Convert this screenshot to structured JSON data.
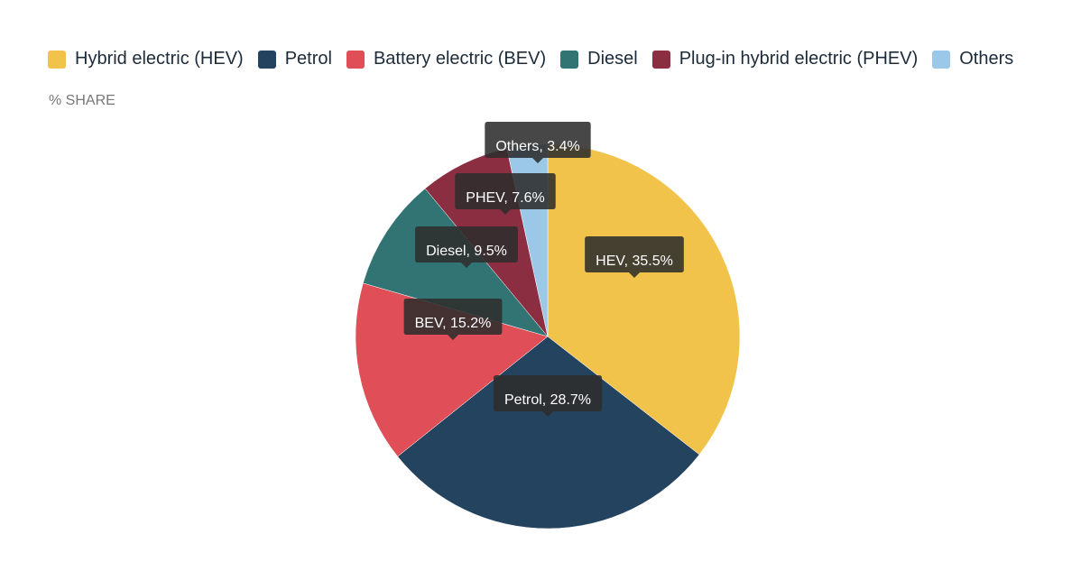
{
  "chart_data": {
    "type": "pie",
    "subtitle": "% SHARE",
    "legend_position": "top-left",
    "slices": [
      {
        "legend": "Hybrid electric (HEV)",
        "label": "HEV, 35.5%",
        "value": 35.5,
        "color": "#f2c34a"
      },
      {
        "legend": "Petrol",
        "label": "Petrol, 28.7%",
        "value": 28.7,
        "color": "#23435e"
      },
      {
        "legend": "Battery electric (BEV)",
        "label": "BEV, 15.2%",
        "value": 15.2,
        "color": "#e04e57"
      },
      {
        "legend": "Diesel",
        "label": "Diesel, 9.5%",
        "value": 9.5,
        "color": "#327373"
      },
      {
        "legend": "Plug-in hybrid electric (PHEV)",
        "label": "PHEV, 7.6%",
        "value": 7.6,
        "color": "#8c2e42"
      },
      {
        "legend": "Others",
        "label": "Others, 3.4%",
        "value": 3.4,
        "color": "#9bc7e8"
      }
    ]
  }
}
